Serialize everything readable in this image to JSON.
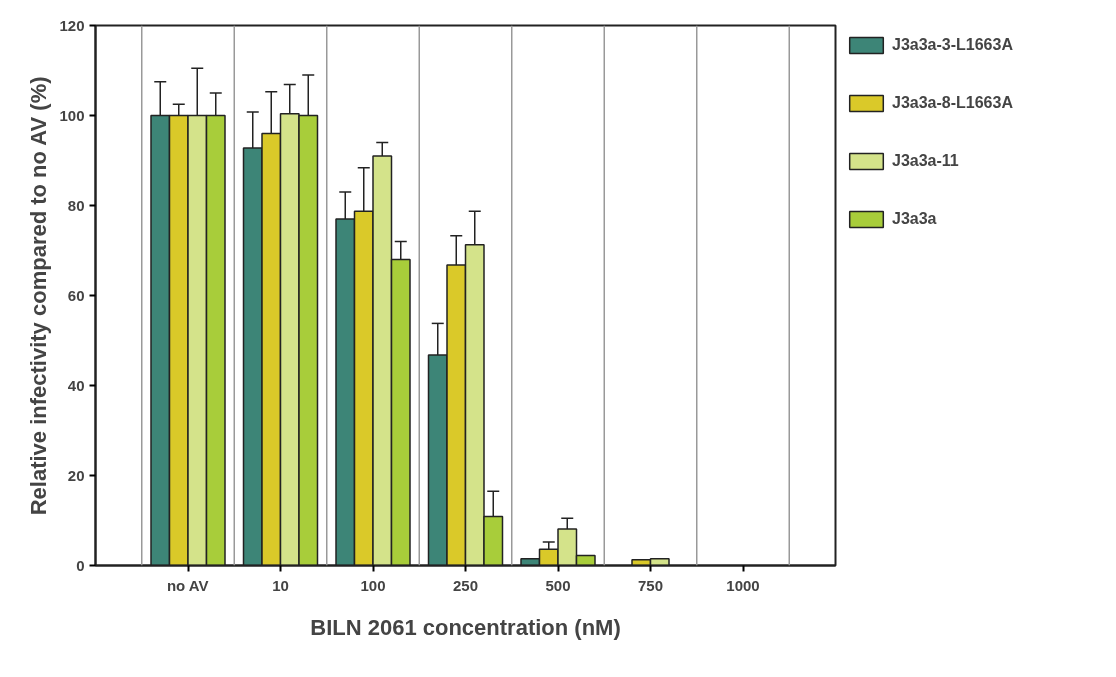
{
  "chart_data": {
    "type": "bar",
    "xlabel": "BILN 2061 concentration (nM)",
    "ylabel": "Relative infectivity compared to no AV (%)",
    "categories": [
      "no AV",
      "10",
      "100",
      "250",
      "500",
      "750",
      "1000"
    ],
    "series": [
      {
        "name": "J3a3a-3-L1663A",
        "color": "#3d8577",
        "values": [
          100,
          92.8,
          77,
          46.8,
          1.5,
          null,
          null
        ],
        "errors": [
          7.5,
          8,
          6,
          7,
          null,
          null,
          null
        ]
      },
      {
        "name": "J3a3a-8-L1663A",
        "color": "#dac929",
        "values": [
          100,
          96,
          78.7,
          66.8,
          3.6,
          1.3,
          null
        ],
        "errors": [
          2.5,
          9.3,
          9.7,
          6.5,
          1.6,
          null,
          null
        ]
      },
      {
        "name": "J3a3a-11",
        "color": "#d4e38a",
        "values": [
          100,
          100.4,
          91,
          71.3,
          8.1,
          1.5,
          null
        ],
        "errors": [
          10.5,
          6.5,
          3,
          7.4,
          2.4,
          null,
          null
        ]
      },
      {
        "name": "J3a3a",
        "color": "#a8cd3a",
        "values": [
          100,
          100,
          68,
          10.9,
          2.2,
          null,
          null
        ],
        "errors": [
          5,
          9,
          4,
          5.6,
          null,
          null,
          null
        ]
      }
    ],
    "ylim": [
      0,
      120
    ],
    "yticks": [
      0,
      20,
      40,
      60,
      80,
      100,
      120
    ],
    "grid": "x",
    "legend": "right"
  }
}
